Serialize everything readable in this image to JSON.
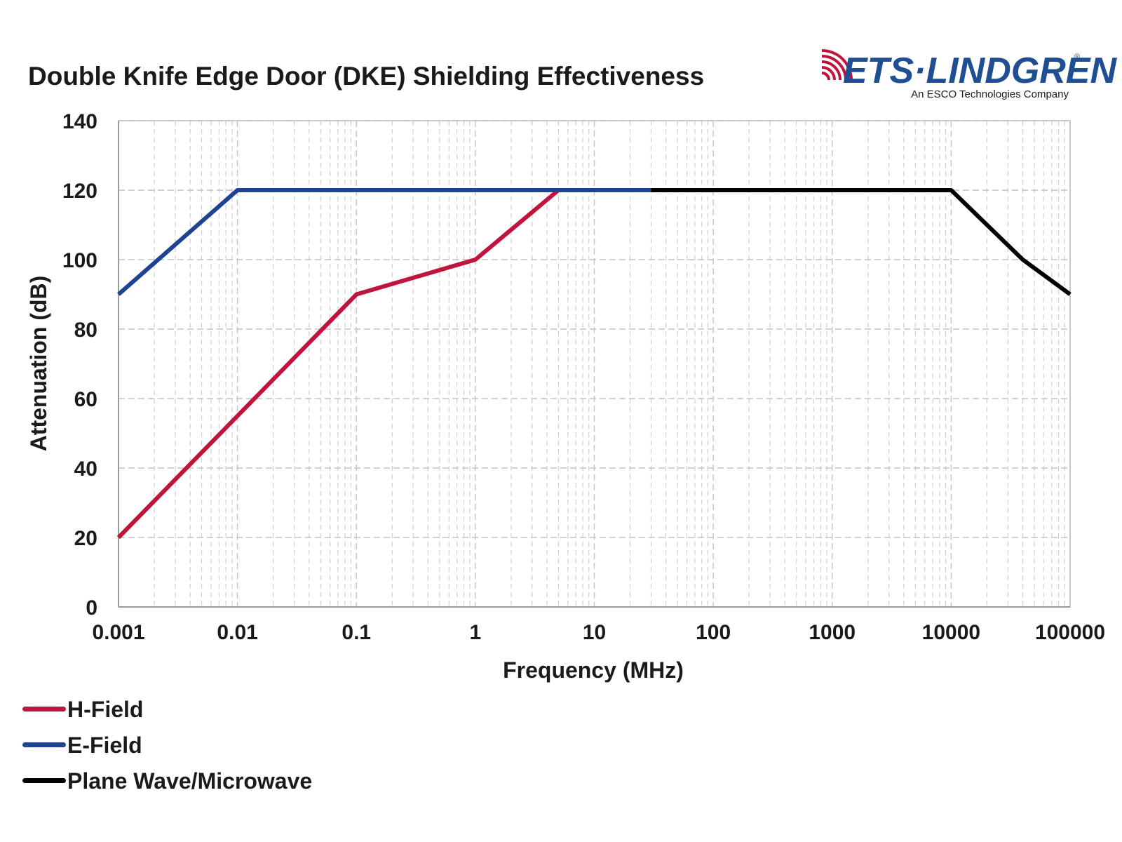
{
  "chart_data": {
    "type": "line",
    "title": "Double Knife Edge Door (DKE) Shielding Effectiveness",
    "xlabel": "Frequency (MHz)",
    "ylabel": "Attenuation (dB)",
    "x_scale": "log",
    "xlim": [
      0.001,
      100000
    ],
    "ylim": [
      0,
      140
    ],
    "x_ticks": [
      0.001,
      0.01,
      0.1,
      1,
      10,
      100,
      1000,
      10000,
      100000
    ],
    "x_tick_labels": [
      "0.001",
      "0.01",
      "0.1",
      "1",
      "10",
      "100",
      "1000",
      "10000",
      "100000"
    ],
    "y_ticks": [
      0,
      20,
      40,
      60,
      80,
      100,
      120,
      140
    ],
    "y_tick_labels": [
      "0",
      "20",
      "40",
      "60",
      "80",
      "100",
      "120",
      "140"
    ],
    "grid": true,
    "legend_position": "bottom-left",
    "series": [
      {
        "name": "H-Field",
        "color": "#c0143c",
        "points": [
          [
            0.001,
            20
          ],
          [
            0.1,
            90
          ],
          [
            1,
            100
          ],
          [
            5,
            120
          ]
        ]
      },
      {
        "name": "E-Field",
        "color": "#1f4393",
        "points": [
          [
            0.001,
            90
          ],
          [
            0.01,
            120
          ],
          [
            30,
            120
          ]
        ]
      },
      {
        "name": "Plane Wave/Microwave",
        "color": "#000000",
        "points": [
          [
            30,
            120
          ],
          [
            10000,
            120
          ],
          [
            40000,
            100
          ],
          [
            100000,
            90
          ]
        ]
      }
    ]
  },
  "logo": {
    "name": "ETS·LINDGREN",
    "registered": "®",
    "tagline": "An ESCO Technologies Company",
    "primary_color": "#1f4e93",
    "accent_color": "#c0143c"
  }
}
